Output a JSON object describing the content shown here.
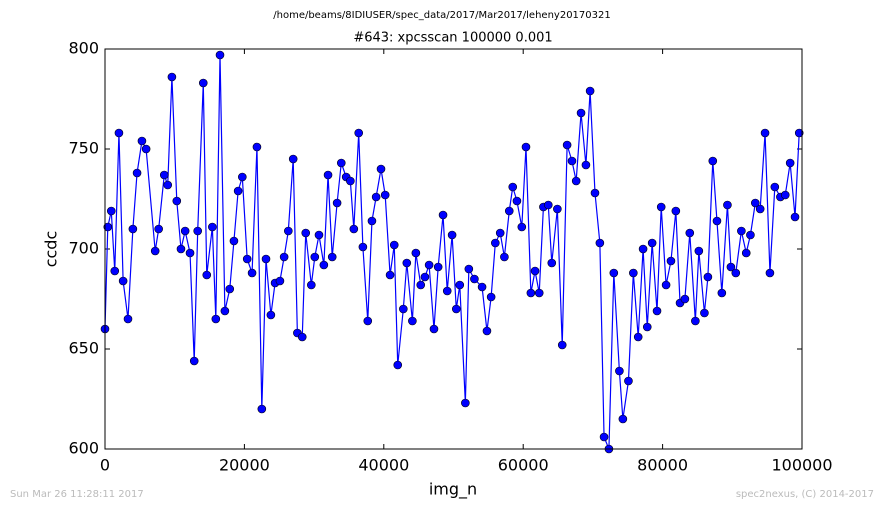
{
  "chart_data": {
    "type": "line",
    "suptitle": "/home/beams/8IDIUSER/spec_data/2017/Mar2017/leheny20170321",
    "title": "#643: xpcsscan 100000 0.001",
    "xlabel": "img_n",
    "ylabel": "ccdc",
    "footer_left": "Sun Mar 26 11:28:11 2017",
    "footer_right": "spec2nexus, (C) 2014-2017",
    "xlim": [
      0,
      100000
    ],
    "ylim": [
      600,
      800
    ],
    "xticks": [
      0,
      20000,
      40000,
      60000,
      80000,
      100000
    ],
    "yticks": [
      600,
      650,
      700,
      750,
      800
    ],
    "x": [
      0,
      400,
      900,
      1400,
      2000,
      2600,
      3300,
      4000,
      4600,
      5300,
      5900,
      7200,
      7700,
      8500,
      9000,
      9600,
      10300,
      10900,
      11500,
      12200,
      12800,
      13300,
      14100,
      14600,
      15400,
      15900,
      16500,
      17200,
      17900,
      18500,
      19100,
      19700,
      20400,
      21100,
      21800,
      22500,
      23100,
      23800,
      24400,
      25100,
      25700,
      26300,
      27000,
      27600,
      28300,
      28800,
      29600,
      30100,
      30700,
      31400,
      32000,
      32600,
      33300,
      33900,
      34600,
      35200,
      35700,
      36400,
      37000,
      37700,
      38300,
      38900,
      39600,
      40200,
      40900,
      41500,
      42000,
      42800,
      43300,
      44100,
      44600,
      45300,
      45900,
      46500,
      47200,
      47800,
      48500,
      49100,
      49800,
      50400,
      50900,
      51700,
      52200,
      53000,
      54100,
      54800,
      55400,
      56000,
      56700,
      57300,
      58000,
      58500,
      59100,
      59800,
      60400,
      61100,
      61700,
      62300,
      62900,
      63600,
      64100,
      64900,
      65600,
      66300,
      67000,
      67600,
      68300,
      69000,
      69600,
      70300,
      71000,
      71600,
      72300,
      73000,
      73800,
      74300,
      75100,
      75800,
      76500,
      77200,
      77800,
      78500,
      79200,
      79800,
      80500,
      81200,
      81900,
      82500,
      83200,
      83900,
      84700,
      85200,
      86000,
      86500,
      87200,
      87800,
      88500,
      89300,
      89800,
      90500,
      91300,
      92000,
      92600,
      93300,
      94000,
      94700,
      95400,
      96100,
      96900,
      97600,
      98300,
      99000,
      99600
    ],
    "series": [
      {
        "name": "ccdc",
        "color": "#0000ff",
        "values": [
          660,
          711,
          719,
          689,
          758,
          684,
          665,
          710,
          738,
          754,
          750,
          699,
          710,
          737,
          732,
          786,
          724,
          700,
          709,
          698,
          644,
          709,
          783,
          687,
          711,
          665,
          797,
          669,
          680,
          704,
          729,
          736,
          695,
          688,
          751,
          620,
          695,
          667,
          683,
          684,
          696,
          709,
          745,
          658,
          656,
          708,
          682,
          696,
          707,
          692,
          737,
          696,
          723,
          743,
          736,
          734,
          710,
          758,
          701,
          664,
          714,
          726,
          740,
          727,
          687,
          702,
          642,
          670,
          693,
          664,
          698,
          682,
          686,
          692,
          660,
          691,
          717,
          679,
          707,
          670,
          682,
          623,
          690,
          685,
          681,
          659,
          676,
          703,
          708,
          696,
          719,
          731,
          724,
          711,
          751,
          678,
          689,
          678,
          721,
          722,
          693,
          720,
          652,
          752,
          744,
          734,
          768,
          742,
          779,
          728,
          703,
          606,
          600,
          688,
          639,
          615,
          634,
          688,
          656,
          700,
          661,
          703,
          669,
          721,
          682,
          694,
          719,
          673,
          675,
          708,
          664,
          699,
          668,
          686,
          744,
          714,
          678,
          722,
          691,
          688,
          709,
          698,
          707,
          723,
          720,
          758,
          688,
          731,
          726,
          727,
          743,
          716,
          758
        ]
      }
    ]
  }
}
